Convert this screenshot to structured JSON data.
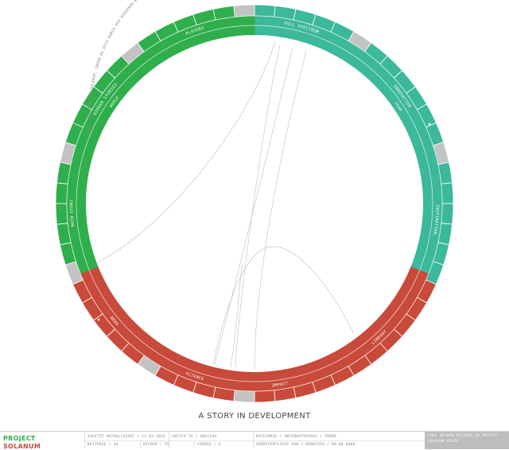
{
  "wheel": {
    "segments": [
      {
        "label": "FULL SPECTRUM",
        "color": "#3cb89b",
        "start": 0,
        "end": 30
      },
      {
        "label": "PLAYERS",
        "color": "#2fae4c",
        "start": 326,
        "end": 356
      },
      {
        "label": "INNOVATION",
        "color": "#3cb89b",
        "start": 36,
        "end": 72
      },
      {
        "label": "INSPIRATION",
        "color": "#3cb89b",
        "start": 78,
        "end": 112
      },
      {
        "label": "LIBRARY",
        "color": "#c84a3a",
        "start": 112,
        "end": 162
      },
      {
        "label": "IMPACT",
        "color": "#c84a3a",
        "start": 162,
        "end": 182
      },
      {
        "label": "SCIENCE",
        "color": "#c84a3a",
        "start": 188,
        "end": 210
      },
      {
        "label": "NEWS",
        "color": "#c84a3a",
        "start": 216,
        "end": 244
      },
      {
        "label": "MAIN STORY",
        "color": "#2fae4c",
        "start": 250,
        "end": 284
      },
      {
        "label": "HIDDEN STORIES",
        "color": "#2fae4c",
        "start": 290,
        "end": 320
      }
    ],
    "inner_labels": [
      "TEAM",
      "WORLD"
    ],
    "instructions": "DIE LINKS PROJECT SOLANUM, INDEM DU DICH DURCH DEN ÄUSSEREN RING KLICKST. SCHREIB MIT, INDEM DU EIN GRAUES FELD AUSWÄHLST. DIE PUNKTE STEHEN FÜR COMMUNITY-BEITRÄGE. WERDE!",
    "colors": {
      "green": "#2fae4c",
      "teal": "#3cb89b",
      "red": "#c84a3a",
      "gray": "#c3c3c3"
    }
  },
  "title": "A STORY IN DEVELOPMENT",
  "footer": {
    "logo_line1": "PROJECT",
    "logo_line2": "SOLANUM",
    "updated": "ZULETZT AKTUALISIERT / 11.03.2024",
    "switch": "SWITCH TO / ENGLISH",
    "category": "KATEGORIE / UNTERKATEGORIE / THEMA",
    "posts": "BEITRÄGE / 34",
    "images": "BILDER / 55",
    "videos": "VIDEOS / 6",
    "published": "VERÖFFENTLICHT VON / BENUTZER / 00.00.0000",
    "cta": "FÜGE DEINEN BEITRAG ZU PROJECT SOLANUM HINZU"
  }
}
